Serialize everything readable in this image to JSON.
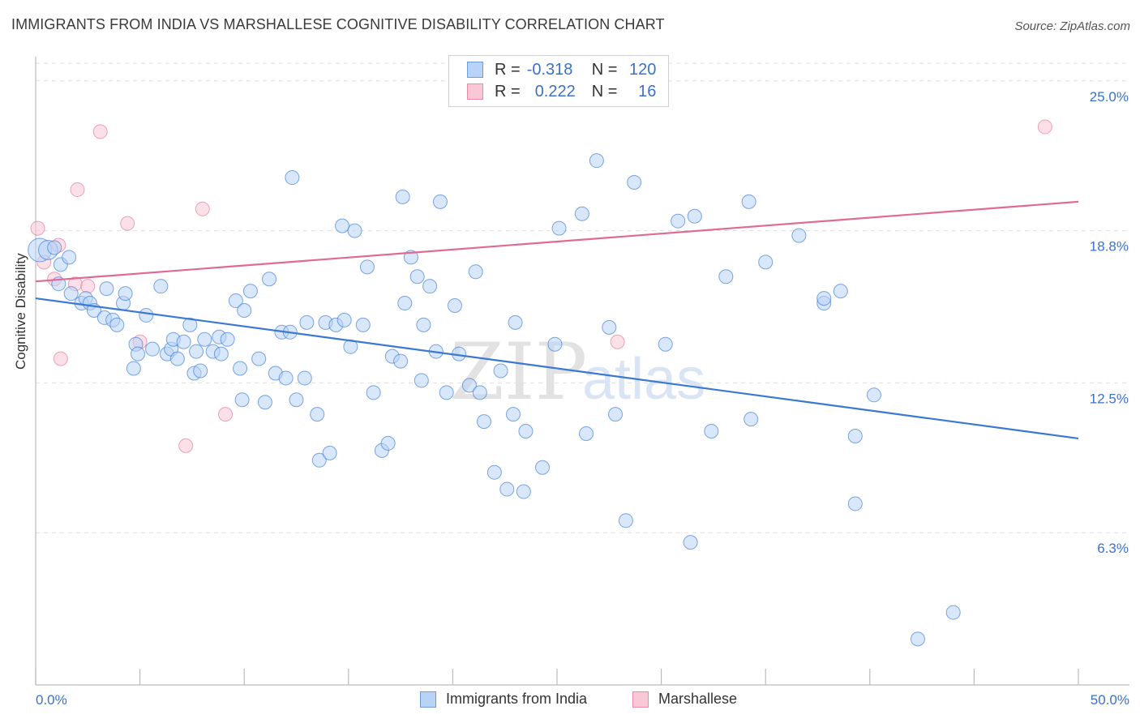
{
  "title": "IMMIGRANTS FROM INDIA VS MARSHALLESE COGNITIVE DISABILITY CORRELATION CHART",
  "source": "Source: ZipAtlas.com",
  "watermark": {
    "zip": "ZIP",
    "atlas": "atlas"
  },
  "legend_top": {
    "rows": [
      {
        "r_label": "R =",
        "r_value": "-0.318",
        "n_label": "N =",
        "n_value": "120"
      },
      {
        "r_label": "R =",
        "r_value": "0.222",
        "n_label": "N =",
        "n_value": "16"
      }
    ]
  },
  "legend_bottom": {
    "series1": "Immigrants from India",
    "series2": "Marshallese"
  },
  "colors": {
    "blue": "#3b78d4",
    "blue_fill": "#b8d3f5",
    "pink": "#e06b92",
    "pink_fill": "#f9c7d6",
    "tick_text": "#3b72c8",
    "grid": "#dddddd"
  },
  "chart_data": {
    "type": "scatter",
    "title": "IMMIGRANTS FROM INDIA VS MARSHALLESE COGNITIVE DISABILITY CORRELATION CHART",
    "xlabel": "",
    "ylabel": "Cognitive Disability",
    "xlim": [
      0,
      50
    ],
    "ylim": [
      0,
      26
    ],
    "x_tick_labels": [
      "0.0%",
      "50.0%"
    ],
    "y_ticks": [
      6.3,
      12.5,
      18.8,
      25.0
    ],
    "y_tick_labels": [
      "6.3%",
      "12.5%",
      "18.8%",
      "25.0%"
    ],
    "grid": "horizontal dashed",
    "series": [
      {
        "name": "Immigrants from India",
        "color": "#3b78d4",
        "trend": {
          "x": [
            0,
            50
          ],
          "y": [
            16.0,
            10.2
          ]
        },
        "points": [
          [
            0.2,
            18.0,
            1.7
          ],
          [
            0.6,
            18.0,
            1.4
          ],
          [
            0.9,
            18.1,
            1
          ],
          [
            1.2,
            17.4,
            1
          ],
          [
            1.6,
            17.7,
            1
          ],
          [
            1.7,
            16.2,
            1
          ],
          [
            1.1,
            16.6,
            1
          ],
          [
            2.2,
            15.8,
            1
          ],
          [
            2.4,
            16.0,
            1
          ],
          [
            2.6,
            15.8,
            1
          ],
          [
            3.4,
            16.4,
            1
          ],
          [
            2.8,
            15.5,
            1
          ],
          [
            3.3,
            15.2,
            1
          ],
          [
            3.7,
            15.1,
            1
          ],
          [
            4.2,
            15.8,
            1
          ],
          [
            4.3,
            16.2,
            1
          ],
          [
            3.9,
            14.9,
            1
          ],
          [
            4.8,
            14.1,
            1
          ],
          [
            4.9,
            13.7,
            1
          ],
          [
            5.3,
            15.3,
            1
          ],
          [
            5.6,
            13.9,
            1
          ],
          [
            4.7,
            13.1,
            1
          ],
          [
            6.0,
            16.5,
            1
          ],
          [
            6.3,
            13.7,
            1
          ],
          [
            6.5,
            13.9,
            1
          ],
          [
            6.6,
            14.3,
            1
          ],
          [
            6.8,
            13.5,
            1
          ],
          [
            7.1,
            14.2,
            1
          ],
          [
            7.4,
            14.9,
            1
          ],
          [
            7.6,
            12.9,
            1
          ],
          [
            7.7,
            13.8,
            1
          ],
          [
            7.9,
            13.0,
            1
          ],
          [
            8.1,
            14.3,
            1
          ],
          [
            8.5,
            13.8,
            1
          ],
          [
            8.8,
            14.4,
            1
          ],
          [
            8.9,
            13.7,
            1
          ],
          [
            9.2,
            14.3,
            1
          ],
          [
            9.6,
            15.9,
            1
          ],
          [
            9.8,
            13.1,
            1
          ],
          [
            10.0,
            15.5,
            1
          ],
          [
            10.3,
            16.3,
            1
          ],
          [
            10.7,
            13.5,
            1
          ],
          [
            9.9,
            11.8,
            1
          ],
          [
            11.0,
            11.7,
            1
          ],
          [
            11.2,
            16.8,
            1
          ],
          [
            11.5,
            12.9,
            1
          ],
          [
            11.8,
            14.6,
            1
          ],
          [
            12.2,
            14.6,
            1
          ],
          [
            12.0,
            12.7,
            1
          ],
          [
            12.5,
            11.8,
            1
          ],
          [
            12.3,
            21.0,
            1
          ],
          [
            12.9,
            12.7,
            1
          ],
          [
            13.0,
            15.0,
            1
          ],
          [
            13.5,
            11.2,
            1
          ],
          [
            13.6,
            9.3,
            1
          ],
          [
            13.9,
            15.0,
            1
          ],
          [
            14.1,
            9.6,
            1
          ],
          [
            14.4,
            14.9,
            1
          ],
          [
            14.7,
            19.0,
            1
          ],
          [
            14.8,
            15.1,
            1
          ],
          [
            15.1,
            14.0,
            1
          ],
          [
            15.3,
            18.8,
            1
          ],
          [
            15.7,
            14.9,
            1
          ],
          [
            15.9,
            17.3,
            1
          ],
          [
            16.2,
            12.1,
            1
          ],
          [
            16.6,
            9.7,
            1
          ],
          [
            16.9,
            10.0,
            1
          ],
          [
            17.1,
            13.6,
            1
          ],
          [
            17.5,
            13.4,
            1
          ],
          [
            17.6,
            20.2,
            1
          ],
          [
            17.7,
            15.8,
            1
          ],
          [
            18.0,
            17.7,
            1
          ],
          [
            18.3,
            16.9,
            1
          ],
          [
            18.5,
            12.6,
            1
          ],
          [
            18.6,
            14.9,
            1
          ],
          [
            18.9,
            16.5,
            1
          ],
          [
            19.2,
            13.8,
            1
          ],
          [
            19.4,
            20.0,
            1
          ],
          [
            19.7,
            12.1,
            1
          ],
          [
            20.1,
            15.7,
            1
          ],
          [
            20.3,
            13.7,
            1
          ],
          [
            20.8,
            12.4,
            1
          ],
          [
            21.1,
            17.1,
            1
          ],
          [
            21.3,
            12.1,
            1
          ],
          [
            21.5,
            10.9,
            1
          ],
          [
            22.0,
            8.8,
            1
          ],
          [
            22.3,
            13.0,
            1
          ],
          [
            22.6,
            8.1,
            1
          ],
          [
            22.9,
            11.2,
            1
          ],
          [
            23.0,
            15.0,
            1
          ],
          [
            23.5,
            10.5,
            1
          ],
          [
            23.4,
            8.0,
            1
          ],
          [
            24.3,
            9.0,
            1
          ],
          [
            24.9,
            14.1,
            1
          ],
          [
            25.1,
            18.9,
            1
          ],
          [
            26.2,
            19.5,
            1
          ],
          [
            26.4,
            10.4,
            1
          ],
          [
            26.9,
            21.7,
            1
          ],
          [
            27.5,
            14.8,
            1
          ],
          [
            27.8,
            11.2,
            1
          ],
          [
            28.3,
            6.8,
            1
          ],
          [
            28.7,
            20.8,
            1
          ],
          [
            30.2,
            14.1,
            1
          ],
          [
            30.8,
            19.2,
            1
          ],
          [
            31.4,
            5.9,
            1
          ],
          [
            31.6,
            19.4,
            1
          ],
          [
            32.4,
            10.5,
            1
          ],
          [
            33.1,
            16.9,
            1
          ],
          [
            34.2,
            20.0,
            1
          ],
          [
            34.3,
            11.0,
            1
          ],
          [
            35.0,
            17.5,
            1
          ],
          [
            36.6,
            18.6,
            1
          ],
          [
            37.8,
            15.8,
            1
          ],
          [
            37.8,
            16.0,
            1
          ],
          [
            38.6,
            16.3,
            1
          ],
          [
            39.3,
            7.5,
            1
          ],
          [
            39.3,
            10.3,
            1
          ],
          [
            40.2,
            12.0,
            1
          ],
          [
            42.3,
            1.9,
            1
          ],
          [
            44.0,
            3.0,
            1
          ]
        ]
      },
      {
        "name": "Marshallese",
        "color": "#e06b92",
        "trend": {
          "x": [
            0,
            50
          ],
          "y": [
            16.7,
            20.0
          ]
        },
        "points": [
          [
            0.1,
            18.9,
            1
          ],
          [
            0.4,
            17.5,
            1
          ],
          [
            1.1,
            18.2,
            1
          ],
          [
            0.9,
            16.8,
            1
          ],
          [
            1.2,
            13.5,
            1
          ],
          [
            1.9,
            16.6,
            1
          ],
          [
            2.0,
            20.5,
            1
          ],
          [
            2.5,
            16.5,
            1
          ],
          [
            3.1,
            22.9,
            1
          ],
          [
            4.4,
            19.1,
            1
          ],
          [
            5.0,
            14.2,
            1
          ],
          [
            7.2,
            9.9,
            1
          ],
          [
            8.0,
            19.7,
            1
          ],
          [
            9.1,
            11.2,
            1
          ],
          [
            27.9,
            14.2,
            1
          ],
          [
            48.4,
            23.1,
            1
          ]
        ]
      }
    ]
  }
}
